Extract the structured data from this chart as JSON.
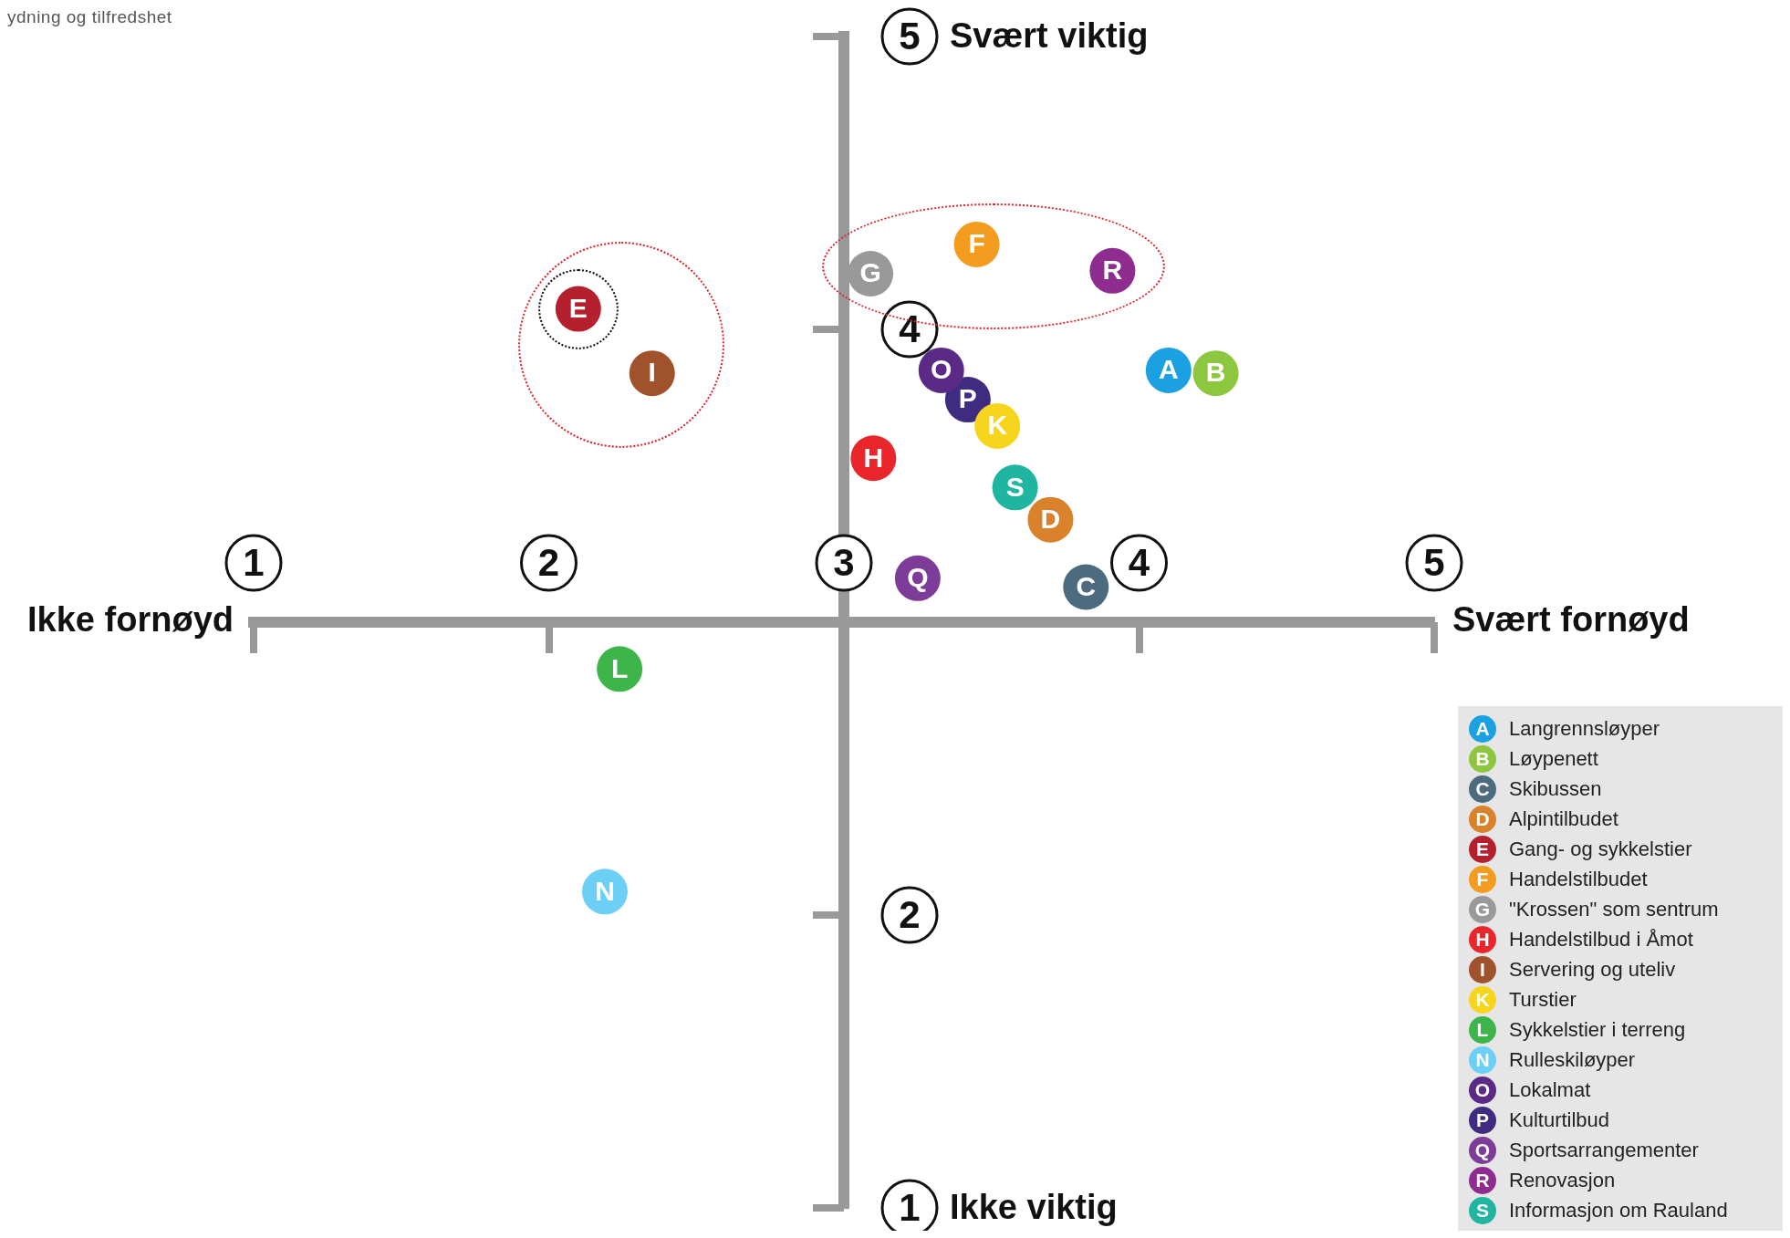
{
  "chart_data": {
    "type": "scatter",
    "title": "ydning og tilfredshet",
    "xlim": [
      1,
      5
    ],
    "ylim": [
      1,
      5
    ],
    "xticks": [
      1,
      2,
      3,
      4,
      5
    ],
    "yticks": [
      1,
      2,
      4,
      5
    ],
    "legend": "bottom right",
    "marker": "circle",
    "annotations": [
      "Ikke fornøyd",
      "Svært fornøyd",
      "Svært viktig",
      "Ikke viktig"
    ],
    "series": [
      {
        "name": "Langrennsløyper",
        "color": "#1ba1e2",
        "x": [
          4.1
        ],
        "values": [
          3.86
        ],
        "value_labels": [
          "A"
        ]
      },
      {
        "name": "Løypenett",
        "color": "#8dc63f",
        "x": [
          4.26
        ],
        "values": [
          3.85
        ],
        "value_labels": [
          "B"
        ]
      },
      {
        "name": "Skibussen",
        "color": "#4d6b7e",
        "x": [
          3.82
        ],
        "values": [
          3.12
        ],
        "value_labels": [
          "C"
        ]
      },
      {
        "name": "Alpintilbudet",
        "color": "#d9822b",
        "x": [
          3.7
        ],
        "values": [
          3.35
        ],
        "value_labels": [
          "D"
        ]
      },
      {
        "name": "Gang- og sykkelstier",
        "color": "#b5202e",
        "x": [
          2.1
        ],
        "values": [
          4.07
        ],
        "value_labels": [
          "E"
        ]
      },
      {
        "name": "Handelstilbudet",
        "color": "#f39c1f",
        "x": [
          3.45
        ],
        "values": [
          4.29
        ],
        "value_labels": [
          "F"
        ]
      },
      {
        "name": "\"Krossen\" som sentrum",
        "color": "#999999",
        "x": [
          3.09
        ],
        "values": [
          4.19
        ],
        "value_labels": [
          "G"
        ]
      },
      {
        "name": "Handelstilbud i Åmot",
        "color": "#e8262b",
        "x": [
          3.1
        ],
        "values": [
          3.56
        ],
        "value_labels": [
          "H"
        ]
      },
      {
        "name": "Servering og uteliv",
        "color": "#a0522d",
        "x": [
          2.35
        ],
        "values": [
          3.85
        ],
        "value_labels": [
          "I"
        ]
      },
      {
        "name": "Turstier",
        "color": "#f7d51d",
        "x": [
          3.52
        ],
        "values": [
          3.67
        ],
        "value_labels": [
          "K"
        ]
      },
      {
        "name": "Sykkelstier i terreng",
        "color": "#3db54a",
        "x": [
          2.24
        ],
        "values": [
          2.84
        ],
        "value_labels": [
          "L"
        ]
      },
      {
        "name": "Rulleskiløyper",
        "color": "#6ccff6",
        "x": [
          2.19
        ],
        "values": [
          2.08
        ],
        "value_labels": [
          "N"
        ]
      },
      {
        "name": "Lokalmat",
        "color": "#5b2a86",
        "x": [
          3.33
        ],
        "values": [
          3.86
        ],
        "value_labels": [
          "O"
        ]
      },
      {
        "name": "Kulturtilbud",
        "color": "#3f2b7f",
        "x": [
          3.42
        ],
        "values": [
          3.76
        ],
        "value_labels": [
          "P"
        ]
      },
      {
        "name": "Sportsarrangementer",
        "color": "#7d3c98",
        "x": [
          3.25
        ],
        "values": [
          3.15
        ],
        "value_labels": [
          "Q"
        ]
      },
      {
        "name": "Renovasjon",
        "color": "#8e2c8f",
        "x": [
          3.91
        ],
        "values": [
          4.2
        ],
        "value_labels": [
          "R"
        ]
      },
      {
        "name": "Informasjon om Rauland",
        "color": "#1fb5a0",
        "x": [
          3.58
        ],
        "values": [
          3.46
        ],
        "value_labels": [
          "S"
        ]
      }
    ]
  }
}
